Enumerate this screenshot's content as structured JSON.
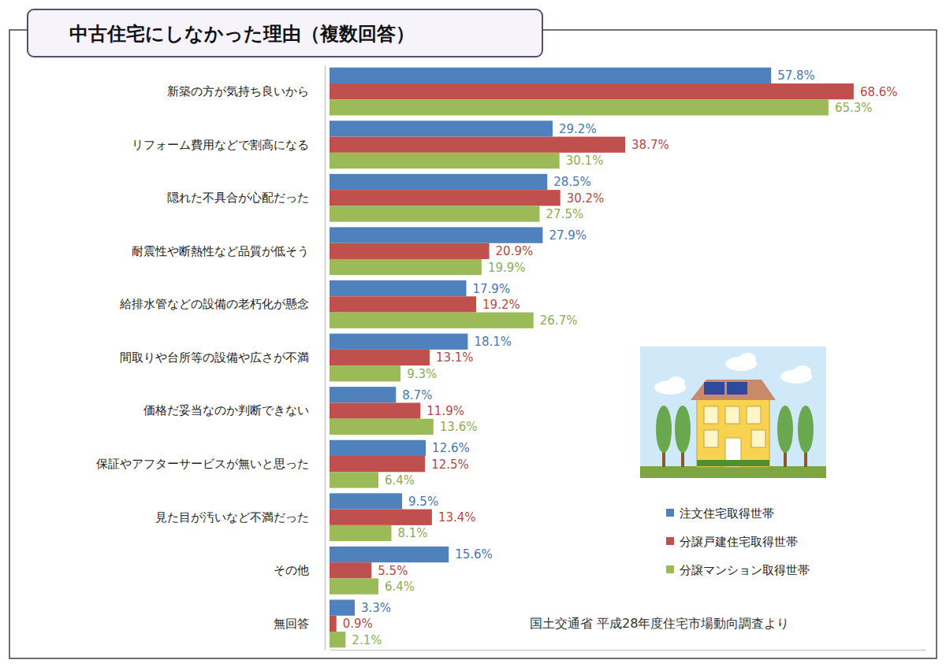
{
  "chart_data": {
    "type": "bar",
    "orientation": "horizontal",
    "title": "中古住宅にしなかった理由（複数回答）",
    "categories": [
      "新築の方が気持ち良いから",
      "リフォーム費用などで割高になる",
      "隠れた不具合が心配だった",
      "耐震性や断熱性など品質が低そう",
      "給排水管などの設備の老朽化が懸念",
      "間取りや台所等の設備や広さが不満",
      "価格だ妥当なのか判断できない",
      "保証やアフターサービスが無いと思った",
      "見た目が汚いなど不満だった",
      "その他",
      "無回答"
    ],
    "series": [
      {
        "name": "注文住宅取得世帯",
        "color": "#4f81bd",
        "values": [
          57.8,
          29.2,
          28.5,
          27.9,
          17.9,
          18.1,
          8.7,
          12.6,
          9.5,
          15.6,
          3.3
        ],
        "value_labels": [
          "57.8%",
          "29.2%",
          "28.5%",
          "27.9%",
          "17.9%",
          "18.1%",
          "8.7%",
          "12.6%",
          "9.5%",
          "15.6%",
          "3.3%"
        ]
      },
      {
        "name": "分譲戸建住宅取得世帯",
        "color": "#c0504d",
        "values": [
          68.6,
          38.7,
          30.2,
          20.9,
          19.2,
          13.1,
          11.9,
          12.5,
          13.4,
          5.5,
          0.9
        ],
        "value_labels": [
          "68.6%",
          "38.7%",
          "30.2%",
          "20.9%",
          "19.2%",
          "13.1%",
          "11.9%",
          "12.5%",
          "13.4%",
          "5.5%",
          "0.9%"
        ]
      },
      {
        "name": "分譲マンション取得世帯",
        "color": "#9bbb59",
        "values": [
          65.3,
          30.1,
          27.5,
          19.9,
          26.7,
          9.3,
          13.6,
          6.4,
          8.1,
          6.4,
          2.1
        ],
        "value_labels": [
          "65.3%",
          "30.1%",
          "27.5%",
          "19.9%",
          "26.7%",
          "9.3%",
          "13.6%",
          "6.4%",
          "8.1%",
          "6.4%",
          "2.1%"
        ]
      }
    ],
    "xlim": [
      0,
      78
    ],
    "xticks": [],
    "grid": false,
    "data_labels": true,
    "tick_labels": "y",
    "legend": "lower right",
    "annotations": [
      "国土交通省 平成28年度住宅市場動向調査より"
    ]
  }
}
